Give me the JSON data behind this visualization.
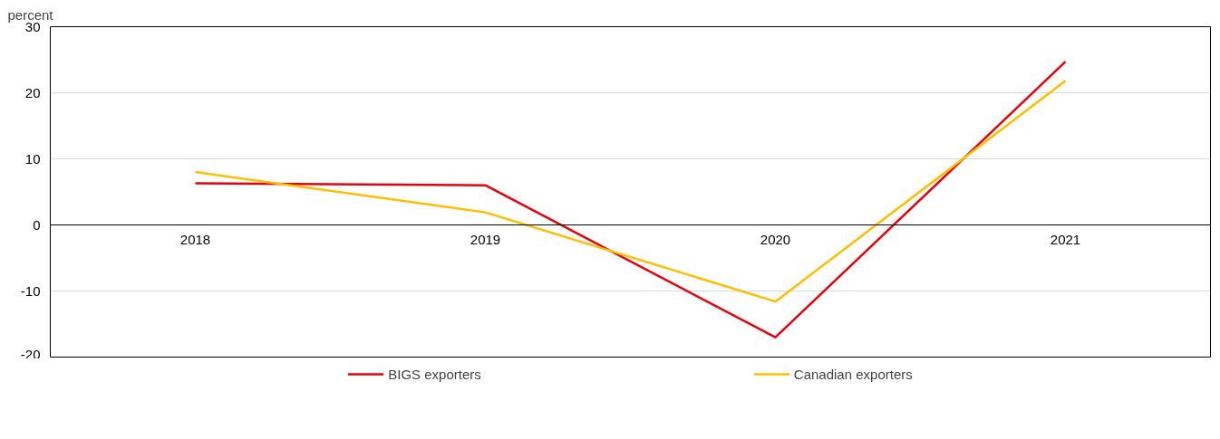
{
  "chart_data": {
    "type": "line",
    "ylabel": "percent",
    "categories": [
      "2018",
      "2019",
      "2020",
      "2021"
    ],
    "series": [
      {
        "name": "BIGS exporters",
        "color": "#e8000b",
        "values": [
          6.3,
          6.0,
          -17.0,
          24.7
        ]
      },
      {
        "name": "Canadian exporters",
        "color": "#ffbf00",
        "values": [
          8.0,
          1.9,
          -11.6,
          21.8
        ]
      }
    ],
    "ylim": [
      -20,
      30
    ],
    "yticks": [
      -20,
      -10,
      0,
      10,
      20,
      30
    ],
    "grid": "y",
    "legend": "bottom",
    "marker": "none",
    "line_style": "solid"
  }
}
